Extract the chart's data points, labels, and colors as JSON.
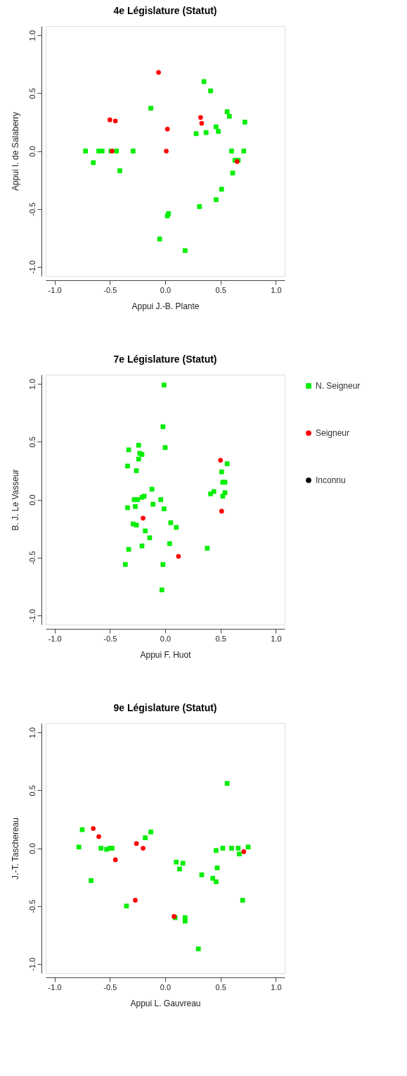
{
  "chart_data": [
    {
      "type": "scatter",
      "title": "4e Législature (Statut)",
      "xlabel": "Appui J.-B. Plante",
      "ylabel": "Appui I. de Salaberry",
      "xlim": [
        -1.08,
        1.08
      ],
      "ylim": [
        -1.08,
        1.08
      ],
      "xticks": [
        {
          "value": -1,
          "label": "-1.0"
        },
        {
          "value": -0.5,
          "label": "-0.5"
        },
        {
          "value": 0,
          "label": "0.0"
        },
        {
          "value": 0.5,
          "label": "0.5"
        },
        {
          "value": 1,
          "label": "1.0"
        }
      ],
      "yticks": [
        {
          "value": -1,
          "label": "-1.0"
        },
        {
          "value": -0.5,
          "label": "-0.5"
        },
        {
          "value": 0,
          "label": "0.0"
        },
        {
          "value": 0.5,
          "label": "0.5"
        },
        {
          "value": 1,
          "label": "1.0"
        }
      ],
      "grid": false,
      "legend": false,
      "series": [
        {
          "color": "#00ee00",
          "marker": "square",
          "x": [
            0.35,
            0.41,
            -0.13,
            0.56,
            0.58,
            0.72,
            0.46,
            0.48,
            0.28,
            0.37,
            -0.72,
            -0.6,
            -0.57,
            -0.49,
            -0.44,
            -0.29,
            -0.65,
            -0.41,
            0.6,
            0.71,
            0.63,
            0.66,
            0.61,
            0.51,
            0.46,
            0.31,
            0.03,
            0.02,
            -0.05,
            0.18
          ],
          "values": [
            0.6,
            0.52,
            0.37,
            0.34,
            0.3,
            0.25,
            0.21,
            0.17,
            0.15,
            0.16,
            0.0,
            0.0,
            0.0,
            0.0,
            0.0,
            0.0,
            -0.1,
            -0.17,
            0.0,
            0.0,
            -0.08,
            -0.08,
            -0.19,
            -0.33,
            -0.42,
            -0.48,
            -0.54,
            -0.56,
            -0.76,
            -0.86
          ]
        },
        {
          "color": "#ff0000",
          "marker": "circle",
          "x": [
            -0.06,
            -0.5,
            -0.45,
            0.02,
            0.32,
            0.33,
            -0.48,
            0.01,
            0.65
          ],
          "values": [
            0.68,
            0.27,
            0.26,
            0.19,
            0.29,
            0.24,
            0.0,
            0.0,
            -0.09
          ]
        }
      ]
    },
    {
      "type": "scatter",
      "title": "7e Législature (Statut)",
      "xlabel": "Appui F. Huot",
      "ylabel": "B. J. Le Vasseur",
      "xlim": [
        -1.08,
        1.08
      ],
      "ylim": [
        -1.08,
        1.08
      ],
      "xticks": [
        {
          "value": -1,
          "label": "-1.0"
        },
        {
          "value": -0.5,
          "label": "-0.5"
        },
        {
          "value": 0,
          "label": "0.0"
        },
        {
          "value": 0.5,
          "label": "0.5"
        },
        {
          "value": 1,
          "label": "1.0"
        }
      ],
      "yticks": [
        {
          "value": -1,
          "label": "-1.0"
        },
        {
          "value": -0.5,
          "label": "-0.5"
        },
        {
          "value": 0,
          "label": "0.0"
        },
        {
          "value": 0.5,
          "label": "0.5"
        },
        {
          "value": 1,
          "label": "1.0"
        }
      ],
      "grid": false,
      "legend": "right",
      "series": [
        {
          "name": "N. Seigneur",
          "color": "#00ee00",
          "marker": "square",
          "x": [
            -0.01,
            -0.02,
            0.0,
            -0.24,
            -0.33,
            -0.23,
            -0.21,
            -0.24,
            -0.34,
            -0.26,
            -0.12,
            -0.28,
            -0.25,
            -0.21,
            -0.19,
            -0.04,
            -0.11,
            -0.01,
            -0.34,
            -0.27,
            -0.29,
            -0.26,
            0.05,
            0.1,
            -0.18,
            -0.14,
            0.04,
            -0.21,
            -0.33,
            -0.36,
            -0.02,
            -0.03,
            0.38,
            0.56,
            0.51,
            0.52,
            0.54,
            0.54,
            0.52,
            0.41,
            0.44
          ],
          "values": [
            0.99,
            0.63,
            0.45,
            0.47,
            0.43,
            0.4,
            0.39,
            0.35,
            0.29,
            0.25,
            0.09,
            0.0,
            0.0,
            0.02,
            0.03,
            0.0,
            -0.04,
            -0.08,
            -0.07,
            -0.06,
            -0.21,
            -0.22,
            -0.2,
            -0.24,
            -0.27,
            -0.33,
            -0.38,
            -0.4,
            -0.43,
            -0.56,
            -0.56,
            -0.78,
            -0.42,
            0.31,
            0.24,
            0.15,
            0.15,
            0.06,
            0.03,
            0.05,
            0.07
          ]
        },
        {
          "name": "Seigneur",
          "color": "#ff0000",
          "marker": "circle",
          "x": [
            0.5,
            0.51,
            -0.2,
            0.12
          ],
          "values": [
            0.34,
            -0.1,
            -0.16,
            -0.49
          ]
        },
        {
          "name": "Inconnu",
          "color": "#000000",
          "marker": "circle"
        }
      ]
    },
    {
      "type": "scatter",
      "title": "9e Législature (Statut)",
      "xlabel": "Appui L. Gauvreau",
      "ylabel": "J.-T. Taschereau",
      "xlim": [
        -1.08,
        1.08
      ],
      "ylim": [
        -1.08,
        1.08
      ],
      "xticks": [
        {
          "value": -1,
          "label": "-1.0"
        },
        {
          "value": -0.5,
          "label": "-0.5"
        },
        {
          "value": 0,
          "label": "0.0"
        },
        {
          "value": 0.5,
          "label": "0.5"
        },
        {
          "value": 1,
          "label": "1.0"
        }
      ],
      "yticks": [
        {
          "value": -1,
          "label": "-1.0"
        },
        {
          "value": -0.5,
          "label": "-0.5"
        },
        {
          "value": 0,
          "label": "0.0"
        },
        {
          "value": 0.5,
          "label": "0.5"
        },
        {
          "value": 1,
          "label": "1.0"
        }
      ],
      "grid": false,
      "legend": false,
      "series": [
        {
          "color": "#00ee00",
          "marker": "square",
          "x": [
            -0.78,
            -0.75,
            -0.67,
            -0.58,
            -0.53,
            -0.5,
            -0.48,
            -0.35,
            -0.18,
            -0.13,
            0.1,
            0.16,
            0.13,
            0.09,
            0.18,
            0.18,
            0.33,
            0.43,
            0.46,
            0.47,
            0.46,
            0.52,
            0.6,
            0.66,
            0.67,
            0.75,
            0.56,
            0.7,
            0.3
          ],
          "values": [
            0.01,
            0.16,
            -0.28,
            0.0,
            -0.01,
            0.0,
            0.0,
            -0.5,
            0.09,
            0.14,
            -0.12,
            -0.13,
            -0.18,
            -0.6,
            -0.6,
            -0.63,
            -0.23,
            -0.26,
            -0.29,
            -0.17,
            -0.02,
            0.0,
            0.0,
            0.0,
            -0.05,
            0.01,
            0.56,
            -0.45,
            -0.87
          ]
        },
        {
          "color": "#ff0000",
          "marker": "circle",
          "x": [
            -0.65,
            -0.6,
            -0.45,
            -0.26,
            -0.2,
            -0.27,
            0.08,
            0.71
          ],
          "values": [
            0.17,
            0.1,
            -0.1,
            0.04,
            0.0,
            -0.45,
            -0.59,
            -0.03
          ]
        }
      ]
    }
  ]
}
